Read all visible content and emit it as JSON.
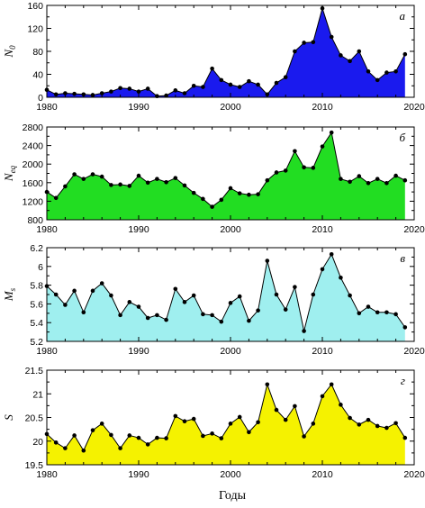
{
  "xlabel": "Годы",
  "chart_data": [
    {
      "type": "area",
      "panel_letter": "а",
      "ylabel_main": "N",
      "ylabel_sub": "0",
      "color": "#1a1aee",
      "xlim": [
        1980,
        2020
      ],
      "ylim": [
        0,
        160
      ],
      "xticks": [
        "1980",
        "1990",
        "2000",
        "2010",
        "2020"
      ],
      "yticks": [
        "0",
        "40",
        "80",
        "120",
        "160"
      ],
      "x": [
        1980,
        1981,
        1982,
        1983,
        1984,
        1985,
        1986,
        1987,
        1988,
        1989,
        1990,
        1991,
        1992,
        1993,
        1994,
        1995,
        1996,
        1997,
        1998,
        1999,
        2000,
        2001,
        2002,
        2003,
        2004,
        2005,
        2006,
        2007,
        2008,
        2009,
        2010,
        2011,
        2012,
        2013,
        2014,
        2015,
        2016,
        2017,
        2018,
        2019
      ],
      "values": [
        13,
        5,
        7,
        6,
        5,
        4,
        7,
        10,
        16,
        15,
        10,
        15,
        2,
        3,
        12,
        7,
        20,
        18,
        50,
        30,
        22,
        18,
        28,
        22,
        5,
        25,
        35,
        80,
        95,
        96,
        155,
        105,
        73,
        63,
        80,
        45,
        30,
        43,
        45,
        75
      ]
    },
    {
      "type": "area",
      "panel_letter": "б",
      "ylabel_main": "N",
      "ylabel_sub": "eq",
      "color": "#22dd22",
      "xlim": [
        1980,
        2020
      ],
      "ylim": [
        800,
        2800
      ],
      "xticks": [
        "1980",
        "1990",
        "2000",
        "2010",
        "2020"
      ],
      "yticks": [
        "800",
        "1200",
        "1600",
        "2000",
        "2400",
        "2800"
      ],
      "x": [
        1980,
        1981,
        1982,
        1983,
        1984,
        1985,
        1986,
        1987,
        1988,
        1989,
        1990,
        1991,
        1992,
        1993,
        1994,
        1995,
        1996,
        1997,
        1998,
        1999,
        2000,
        2001,
        2002,
        2003,
        2004,
        2005,
        2006,
        2007,
        2008,
        2009,
        2010,
        2011,
        2012,
        2013,
        2014,
        2015,
        2016,
        2017,
        2018,
        2019
      ],
      "values": [
        1400,
        1270,
        1520,
        1780,
        1680,
        1780,
        1730,
        1550,
        1560,
        1530,
        1750,
        1600,
        1680,
        1610,
        1700,
        1540,
        1380,
        1250,
        1080,
        1230,
        1480,
        1370,
        1340,
        1350,
        1650,
        1820,
        1860,
        2280,
        1930,
        1920,
        2380,
        2680,
        1680,
        1620,
        1740,
        1590,
        1680,
        1590,
        1750,
        1650
      ]
    },
    {
      "type": "area",
      "panel_letter": "в",
      "ylabel_main": "M",
      "ylabel_sub": "s",
      "color": "#9fefef",
      "xlim": [
        1980,
        2020
      ],
      "ylim": [
        5.2,
        6.2
      ],
      "xticks": [
        "1980",
        "1990",
        "2000",
        "2010",
        "2020"
      ],
      "yticks": [
        "5.2",
        "5.4",
        "5.6",
        "5.8",
        "6",
        "6.2"
      ],
      "x": [
        1980,
        1981,
        1982,
        1983,
        1984,
        1985,
        1986,
        1987,
        1988,
        1989,
        1990,
        1991,
        1992,
        1993,
        1994,
        1995,
        1996,
        1997,
        1998,
        1999,
        2000,
        2001,
        2002,
        2003,
        2004,
        2005,
        2006,
        2007,
        2008,
        2009,
        2010,
        2011,
        2012,
        2013,
        2014,
        2015,
        2016,
        2017,
        2018,
        2019
      ],
      "values": [
        5.79,
        5.7,
        5.59,
        5.74,
        5.51,
        5.74,
        5.82,
        5.69,
        5.48,
        5.62,
        5.57,
        5.45,
        5.48,
        5.43,
        5.76,
        5.62,
        5.69,
        5.49,
        5.48,
        5.41,
        5.61,
        5.68,
        5.42,
        5.53,
        6.06,
        5.7,
        5.54,
        5.78,
        5.31,
        5.7,
        5.97,
        6.13,
        5.88,
        5.69,
        5.5,
        5.57,
        5.51,
        5.51,
        5.49,
        5.35
      ]
    },
    {
      "type": "area",
      "panel_letter": "г",
      "ylabel_main": "S",
      "ylabel_sub": "",
      "color": "#f5f200",
      "xlim": [
        1980,
        2020
      ],
      "ylim": [
        19.5,
        21.5
      ],
      "xticks": [
        "1980",
        "1990",
        "2000",
        "2010",
        "2020"
      ],
      "yticks": [
        "19.5",
        "20",
        "20.5",
        "21",
        "21.5"
      ],
      "x": [
        1980,
        1981,
        1982,
        1983,
        1984,
        1985,
        1986,
        1987,
        1988,
        1989,
        1990,
        1991,
        1992,
        1993,
        1994,
        1995,
        1996,
        1997,
        1998,
        1999,
        2000,
        2001,
        2002,
        2003,
        2004,
        2005,
        2006,
        2007,
        2008,
        2009,
        2010,
        2011,
        2012,
        2013,
        2014,
        2015,
        2016,
        2017,
        2018,
        2019
      ],
      "values": [
        20.15,
        19.97,
        19.85,
        20.12,
        19.8,
        20.23,
        20.37,
        20.13,
        19.85,
        20.12,
        20.07,
        19.93,
        20.07,
        20.06,
        20.53,
        20.42,
        20.47,
        20.11,
        20.16,
        20.06,
        20.37,
        20.51,
        20.19,
        20.4,
        21.2,
        20.66,
        20.45,
        20.74,
        20.1,
        20.37,
        20.95,
        21.2,
        20.77,
        20.49,
        20.35,
        20.45,
        20.32,
        20.28,
        20.38,
        20.07
      ]
    }
  ]
}
